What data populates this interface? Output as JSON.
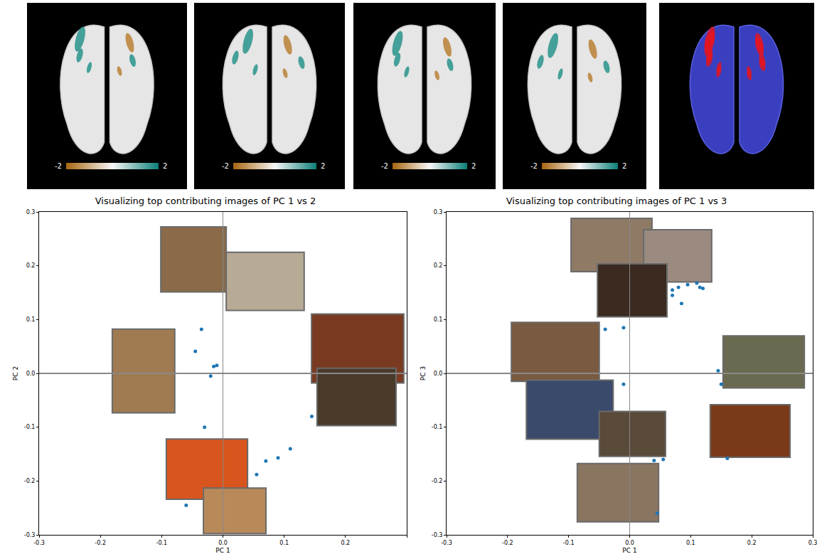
{
  "maps": [
    {
      "colorbar": {
        "range": [
          -2,
          2
        ],
        "ticks": [
          -2,
          2
        ]
      }
    },
    {
      "colorbar": {
        "range": [
          -2,
          2
        ],
        "ticks": [
          -2,
          2
        ]
      }
    },
    {
      "colorbar": {
        "range": [
          -2,
          2
        ],
        "ticks": [
          -2,
          2
        ]
      }
    },
    {
      "colorbar": {
        "range": [
          -2,
          2
        ],
        "ticks": [
          -2,
          2
        ]
      }
    }
  ],
  "chart_data": [
    {
      "type": "scatter",
      "title": "Visualizing top contributing images of PC 1 vs 2",
      "x_label": "PC 1",
      "y_label": "PC 2",
      "x": [
        -0.035,
        -0.045,
        -0.01,
        -0.015,
        -0.02,
        -0.03,
        0.055,
        0.07,
        0.09,
        0.11,
        0.145,
        -0.06
      ],
      "y": [
        0.082,
        0.041,
        0.015,
        0.013,
        -0.005,
        -0.1,
        -0.188,
        -0.163,
        -0.157,
        -0.14,
        -0.08,
        -0.245
      ],
      "color": "#1f77b4",
      "grid": false,
      "xlim": [
        -0.3,
        0.3
      ],
      "ylim": [
        -0.3,
        0.3
      ],
      "xticks": [
        -0.3,
        -0.2,
        -0.1,
        {
          "value": 0,
          "label": "0.0"
        },
        0.1,
        0.2,
        0.3
      ],
      "yticks": [
        -0.3,
        -0.2,
        -0.1,
        {
          "value": 0,
          "label": "0.0"
        },
        0.1,
        0.2,
        0.3
      ]
    },
    {
      "type": "scatter",
      "title": "Visualizing top contributing images of PC 1 vs 3",
      "x_label": "PC 1",
      "y_label": "PC 3",
      "x": [
        -0.04,
        -0.01,
        0.07,
        0.07,
        0.08,
        0.095,
        0.11,
        0.115,
        0.12,
        0.085,
        -0.01,
        0.145,
        0.15,
        0.04,
        0.055,
        0.16,
        0.045
      ],
      "y": [
        0.082,
        0.085,
        0.145,
        0.155,
        0.16,
        0.165,
        0.168,
        0.16,
        0.158,
        0.13,
        -0.02,
        0.005,
        -0.02,
        -0.162,
        -0.16,
        -0.158,
        -0.26
      ],
      "color": "#1f77b4",
      "grid": false,
      "xlim": [
        -0.3,
        0.3
      ],
      "ylim": [
        -0.3,
        0.3
      ],
      "xticks": [
        -0.3,
        -0.2,
        -0.1,
        {
          "value": 0,
          "label": "0.0"
        },
        0.1,
        0.2,
        0.3
      ],
      "yticks": [
        -0.3,
        -0.2,
        -0.1,
        {
          "value": 0,
          "label": "0.0"
        },
        0.1,
        0.2,
        0.3
      ]
    }
  ]
}
